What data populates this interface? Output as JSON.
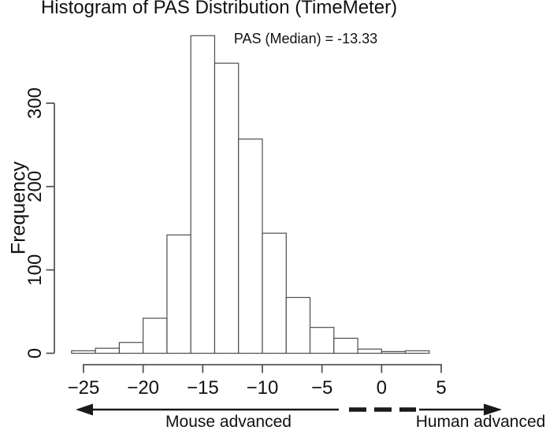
{
  "colors": {
    "background": "#ffffff",
    "text": "#111111",
    "axis_line": "#565656",
    "bar_border": "#4d4d4d",
    "bar_fill": "#ffffff",
    "arrow": "#1a1a1a"
  },
  "chart_data": {
    "type": "bar",
    "title": "Histogram of PAS Distribution (TimeMeter)",
    "annotation": "PAS (Median) = -13.33",
    "median": -13.33,
    "xlabel": "",
    "ylabel": "Frequency",
    "bin_edges": [
      -26,
      -24,
      -22,
      -20,
      -18,
      -16,
      -14,
      -12,
      -10,
      -8,
      -6,
      -4,
      -2,
      0,
      2,
      4
    ],
    "frequencies": [
      3,
      6,
      13,
      42,
      142,
      381,
      348,
      257,
      144,
      67,
      31,
      18,
      5,
      2,
      3
    ],
    "x_ticks": [
      -25,
      -20,
      -15,
      -10,
      -5,
      0,
      5
    ],
    "x_tick_labels": [
      "−25",
      "−20",
      "−15",
      "−10",
      "−5",
      "0",
      "5"
    ],
    "y_ticks": [
      0,
      100,
      200,
      300
    ],
    "y_tick_labels": [
      "0",
      "100",
      "200",
      "300"
    ],
    "xlim": [
      -26.5,
      5.5
    ],
    "ylim": [
      0,
      390
    ],
    "grid": "off",
    "legend": "none",
    "annotations_below": {
      "left_arrow_label": "Mouse advanced",
      "right_arrow_label": "Human advanced"
    }
  }
}
